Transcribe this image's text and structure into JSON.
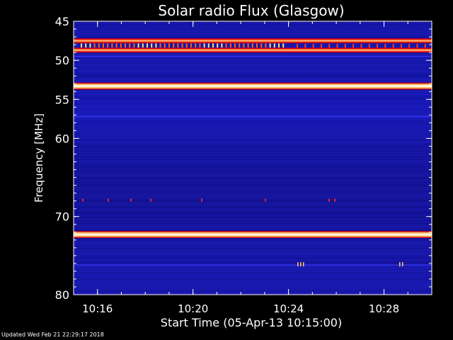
{
  "chart_data": {
    "type": "heatmap",
    "title": "Solar radio Flux (Glasgow)",
    "ylabel": "Frequency [MHz]",
    "xlabel": "Start Time (05-Apr-13 10:15:00)",
    "ylim": [
      45,
      80
    ],
    "y_inverted": true,
    "xlim": [
      "10:15",
      "10:30"
    ],
    "x_ticks": [
      "10:16",
      "10:20",
      "10:24",
      "10:28"
    ],
    "y_ticks": [
      "45",
      "50",
      "55",
      "60",
      "70",
      "80"
    ],
    "colormap": {
      "background": "#1a1ab8",
      "low": "#000080",
      "mid": "#e00020",
      "high": "#fff5c0"
    },
    "interference_bands_mhz": [
      {
        "frequency": 47.5,
        "intensity": "high"
      },
      {
        "frequency": 48.7,
        "intensity": "high"
      },
      {
        "frequency": 53.3,
        "intensity": "very-high"
      },
      {
        "frequency": 72.3,
        "intensity": "very-high"
      }
    ],
    "faint_lines_mhz": [
      49.5,
      57.2,
      76.2
    ],
    "burst_bands_mhz": [
      48.1,
      67.9
    ]
  },
  "footer": {
    "updated": "Updated Wed Feb 21 22:29:17 2018"
  }
}
